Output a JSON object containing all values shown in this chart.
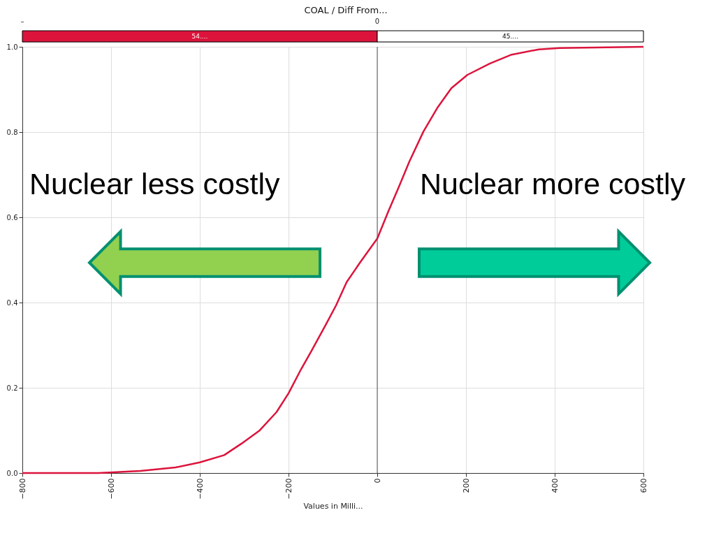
{
  "chart_data": [
    {
      "type": "bar",
      "orientation": "horizontal",
      "categories": [
        null
      ],
      "series": [
        {
          "color": "#dc143c",
          "base": [
            -800
          ],
          "values": [
            800
          ],
          "value_labels": [
            "54...."
          ]
        },
        {
          "color": "#ffffff",
          "base": [
            0
          ],
          "values": [
            600
          ],
          "value_labels": [
            "45...."
          ]
        }
      ],
      "xlim": [
        -800,
        600
      ],
      "tick_labels": false,
      "annotations": [
        "–",
        "0"
      ],
      "grid": "x"
    },
    {
      "type": "line",
      "title": "COAL / Diff From...",
      "xlabel": "Values in Milli...",
      "x": [
        -800,
        -628,
        -534,
        -455,
        -400,
        -345,
        -306,
        -266,
        -227,
        -200,
        -172,
        -148,
        -117,
        -93,
        -69,
        -38,
        -14,
        0,
        25,
        49,
        72,
        104,
        135,
        167,
        203,
        254,
        301,
        364,
        411,
        600
      ],
      "series": [
        {
          "color": "#dc143c",
          "values": [
            0.0,
            0.0,
            0.005,
            0.013,
            0.025,
            0.042,
            0.069,
            0.099,
            0.143,
            0.187,
            0.243,
            0.287,
            0.346,
            0.393,
            0.448,
            0.495,
            0.53,
            0.55,
            0.614,
            0.672,
            0.73,
            0.801,
            0.856,
            0.903,
            0.934,
            0.961,
            0.981,
            0.994,
            0.997,
            1.0
          ]
        }
      ],
      "xlim": [
        -800,
        600
      ],
      "xticks": [
        -800,
        -600,
        -400,
        -200,
        0,
        200,
        400,
        600
      ],
      "ylim": [
        0,
        1
      ],
      "yticks": [
        {
          "value": 0,
          "label": "0.0"
        },
        0.2,
        0.4,
        0.6,
        0.8,
        {
          "value": 1,
          "label": "1.0"
        }
      ],
      "ref_lines": [
        {
          "axis": "x",
          "value": 0,
          "color": "#555555"
        }
      ],
      "annotations": [
        "Nuclear less costly",
        "Nuclear more costly"
      ],
      "grid": true,
      "marker": "none",
      "line_style": "solid"
    }
  ]
}
